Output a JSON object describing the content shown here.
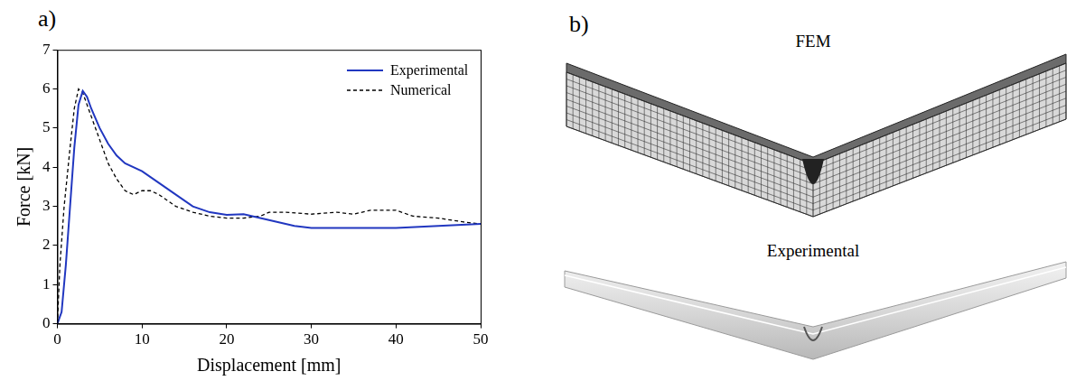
{
  "panel_labels": [
    "a)",
    "b)"
  ],
  "chart_data": {
    "type": "line",
    "x_label": "Displacement [mm]",
    "y_label": "Force [kN]",
    "xlim": [
      0,
      50
    ],
    "xticks": [
      0,
      10,
      20,
      30,
      40,
      50
    ],
    "ylim": [
      0,
      7
    ],
    "yticks": [
      0,
      1,
      2,
      3,
      4,
      5,
      6,
      7
    ],
    "grid": false,
    "legend": "upper right",
    "series": [
      {
        "name": "Experimental",
        "color": "#2137c0",
        "line_style": "solid",
        "x": [
          0,
          0.5,
          1,
          1.5,
          2,
          2.5,
          3,
          3.5,
          4,
          5,
          6,
          7,
          8,
          10,
          12,
          14,
          16,
          18,
          20,
          22,
          25,
          28,
          30,
          35,
          40,
          45,
          50
        ],
        "values": [
          0,
          0.3,
          1.5,
          3.0,
          4.5,
          5.6,
          5.95,
          5.8,
          5.5,
          5.0,
          4.6,
          4.3,
          4.1,
          3.9,
          3.6,
          3.3,
          3.0,
          2.85,
          2.78,
          2.8,
          2.65,
          2.5,
          2.45,
          2.45,
          2.45,
          2.5,
          2.55
        ]
      },
      {
        "name": "Numerical",
        "color": "#000000",
        "line_style": "dashed",
        "x": [
          0,
          0.3,
          0.8,
          1.5,
          2,
          2.5,
          3,
          4,
          5,
          6,
          7,
          8,
          9,
          10,
          11,
          12,
          14,
          16,
          18,
          20,
          22,
          24,
          25,
          27,
          30,
          33,
          35,
          37,
          40,
          42,
          45,
          48,
          50
        ],
        "values": [
          0,
          1.5,
          3.0,
          4.5,
          5.5,
          6.0,
          5.9,
          5.3,
          4.7,
          4.1,
          3.7,
          3.4,
          3.3,
          3.4,
          3.4,
          3.3,
          3.0,
          2.85,
          2.75,
          2.7,
          2.7,
          2.75,
          2.85,
          2.85,
          2.8,
          2.85,
          2.8,
          2.9,
          2.9,
          2.75,
          2.7,
          2.6,
          2.55
        ]
      }
    ]
  },
  "figure_b": {
    "labels": [
      "FEM",
      "Experimental"
    ]
  }
}
